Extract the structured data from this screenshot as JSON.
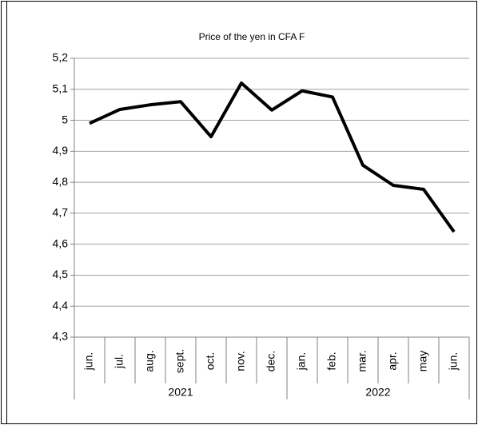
{
  "chart_data": {
    "type": "line",
    "title": "Price of the yen in CFA F",
    "categories": [
      "jun.",
      "jul.",
      "aug.",
      "sept.",
      "oct.",
      "nov.",
      "dec.",
      "jan.",
      "feb.",
      "mar.",
      "apr.",
      "may",
      "jun."
    ],
    "groups": [
      {
        "name": "2021",
        "count": 7
      },
      {
        "name": "2022",
        "count": 6
      }
    ],
    "values": [
      4.99,
      5.035,
      5.05,
      5.06,
      4.947,
      5.12,
      5.033,
      5.095,
      5.075,
      4.855,
      4.79,
      4.777,
      4.64
    ],
    "color": "#000000",
    "ylim": [
      4.3,
      5.2
    ],
    "yticks": [
      {
        "value": 4.3,
        "label": "4,3"
      },
      {
        "value": 4.4,
        "label": "4,4"
      },
      {
        "value": 4.5,
        "label": "4,5"
      },
      {
        "value": 4.6,
        "label": "4,6"
      },
      {
        "value": 4.7,
        "label": "4,7"
      },
      {
        "value": 4.8,
        "label": "4,8"
      },
      {
        "value": 4.9,
        "label": "4,9"
      },
      5,
      {
        "value": 5.1,
        "label": "5,1"
      },
      {
        "value": 5.2,
        "label": "5,2"
      }
    ],
    "grid": true
  }
}
